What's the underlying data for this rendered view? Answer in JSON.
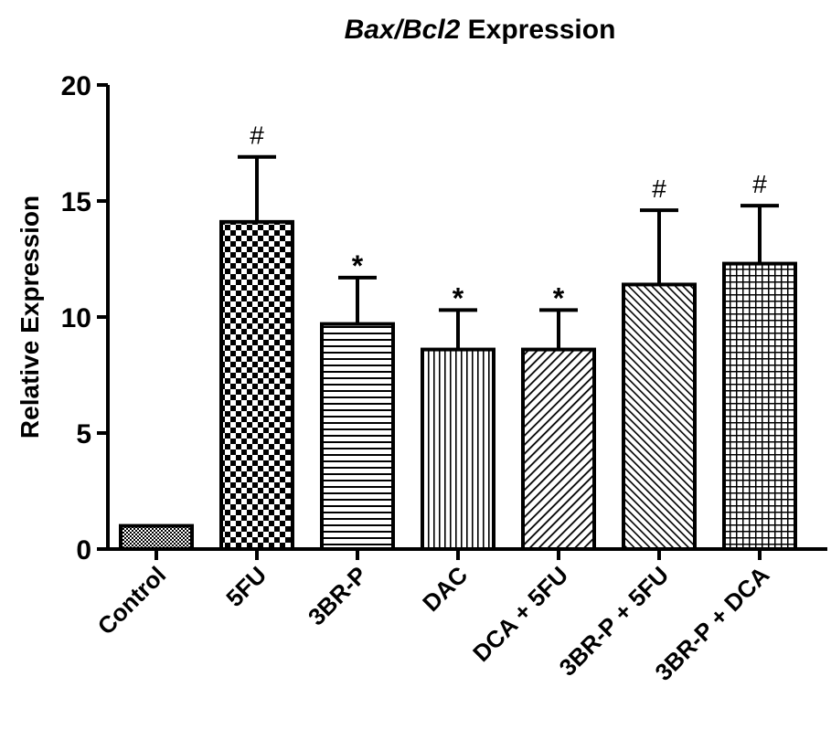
{
  "chart_data": {
    "type": "bar",
    "title_parts": [
      {
        "text": "Bax/Bcl2",
        "italic": true
      },
      {
        "text": " Expression",
        "italic": false
      }
    ],
    "xlabel": "",
    "ylabel": "Relative Expression",
    "ylim": [
      0,
      20
    ],
    "yticks": [
      0,
      5,
      10,
      15,
      20
    ],
    "ytick_labels": [
      "0",
      "5",
      "10",
      "15",
      "20"
    ],
    "categories": [
      "Control",
      "5FU",
      "3BR-P",
      "DAC",
      "DCA + 5FU",
      "3BR-P + 5FU",
      "3BR-P + DCA"
    ],
    "values": [
      1.0,
      14.1,
      9.7,
      8.6,
      8.6,
      11.4,
      12.3
    ],
    "errors": [
      0.0,
      2.8,
      2.0,
      1.7,
      1.7,
      3.2,
      2.5
    ],
    "significance": [
      "",
      "#",
      "*",
      "*",
      "*",
      "#",
      "#"
    ],
    "patterns": [
      "fine-dots",
      "checkerboard",
      "horizontal-lines",
      "vertical-lines",
      "diagonal-lines",
      "diagonal-dense",
      "grid"
    ],
    "colors": {
      "bar_stroke": "#000000",
      "bar_fill": "#ffffff",
      "axis": "#000000"
    },
    "grid": false,
    "legend": "none"
  }
}
